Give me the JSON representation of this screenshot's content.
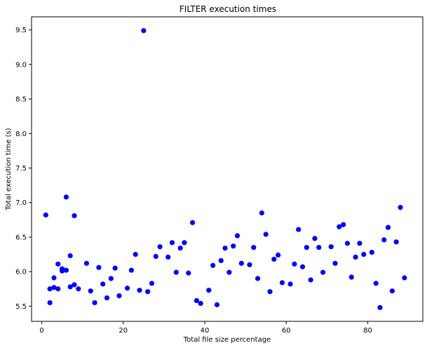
{
  "chart_data": {
    "type": "scatter",
    "title": "FILTER execution times",
    "xlabel": "Total file size percentage",
    "ylabel": "Total execution time (s)",
    "xlim": [
      -2.5,
      93.5
    ],
    "ylim": [
      5.28,
      9.69
    ],
    "xticks": [
      0,
      20,
      40,
      60,
      80
    ],
    "xtick_labels": [
      "0",
      "20",
      "40",
      "60",
      "80"
    ],
    "yticks": [
      5.5,
      6.0,
      6.5,
      7.0,
      7.5,
      8.0,
      8.5,
      9.0,
      9.5
    ],
    "ytick_labels": [
      "5.5",
      "6.0",
      "6.5",
      "7.0",
      "7.5",
      "8.0",
      "8.5",
      "9.0",
      "9.5"
    ],
    "grid": false,
    "marker_color": "#0000ff",
    "series": [
      {
        "x": [
          1,
          2,
          2,
          3,
          3,
          4,
          4,
          5,
          5,
          6,
          6,
          7,
          7,
          8,
          8,
          9,
          11,
          12,
          13,
          14,
          15,
          16,
          17,
          18,
          19,
          21,
          22,
          23,
          24,
          25,
          26,
          27,
          28,
          29,
          31,
          32,
          33,
          34,
          35,
          36,
          37,
          38,
          39,
          41,
          42,
          43,
          44,
          45,
          46,
          47,
          48,
          49,
          51,
          52,
          53,
          54,
          55,
          56,
          57,
          58,
          59,
          61,
          62,
          63,
          64,
          65,
          66,
          67,
          68,
          69,
          71,
          72,
          73,
          74,
          75,
          76,
          77,
          78,
          79,
          81,
          82,
          83,
          84,
          85,
          86,
          87,
          88,
          89
        ],
        "y": [
          6.82,
          5.75,
          5.55,
          5.91,
          5.77,
          6.11,
          5.75,
          6.04,
          6.01,
          7.08,
          6.02,
          5.78,
          6.23,
          6.81,
          5.81,
          5.75,
          6.12,
          5.72,
          5.55,
          6.06,
          5.82,
          5.62,
          5.9,
          6.05,
          5.65,
          5.76,
          6.02,
          6.25,
          5.73,
          9.49,
          5.71,
          5.83,
          6.22,
          6.36,
          6.21,
          6.42,
          5.99,
          6.34,
          6.42,
          5.98,
          6.71,
          5.58,
          5.54,
          5.73,
          6.09,
          5.52,
          6.16,
          6.34,
          5.99,
          6.37,
          6.52,
          6.12,
          6.1,
          6.35,
          5.9,
          6.85,
          6.54,
          5.71,
          6.18,
          6.24,
          5.84,
          5.82,
          6.11,
          6.61,
          6.07,
          6.35,
          5.88,
          6.48,
          6.35,
          5.99,
          6.36,
          6.12,
          6.65,
          6.68,
          6.41,
          5.92,
          6.21,
          6.41,
          6.25,
          6.28,
          5.83,
          5.48,
          6.46,
          6.64,
          5.72,
          6.43,
          6.93,
          5.91
        ]
      }
    ]
  }
}
